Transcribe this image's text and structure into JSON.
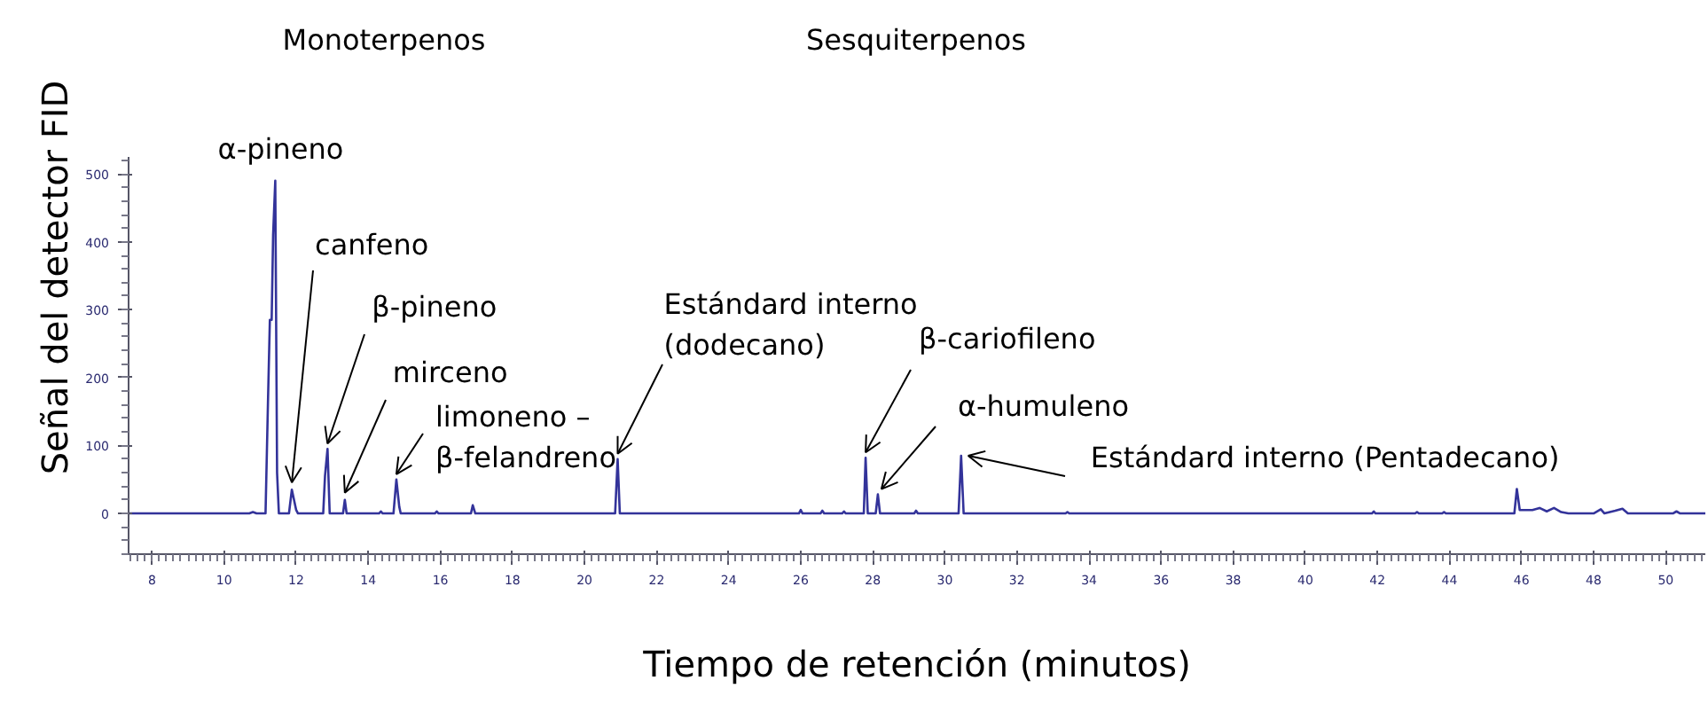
{
  "chart_data": {
    "type": "line",
    "xlabel": "Tiempo de retención (minutos)",
    "ylabel": "Señal del detector FID",
    "xlim": [
      7.35,
      51.1
    ],
    "ylim": [
      -60,
      525
    ],
    "xticks": [
      8,
      10,
      12,
      14,
      16,
      18,
      20,
      22,
      24,
      26,
      28,
      30,
      32,
      34,
      36,
      38,
      40,
      42,
      44,
      46,
      48,
      50
    ],
    "yticks": [
      0,
      100,
      200,
      300,
      400,
      500
    ],
    "grid": false,
    "marker": "none",
    "line_style": "solid",
    "series": [
      {
        "color": "#33339a",
        "x": [
          7.35,
          10.7,
          10.8,
          10.9,
          11.15,
          11.22,
          11.27,
          11.32,
          11.36,
          11.42,
          11.47,
          11.52,
          11.8,
          11.88,
          12.0,
          12.05,
          12.75,
          12.8,
          12.87,
          12.93,
          13.3,
          13.35,
          13.4,
          14.3,
          14.35,
          14.4,
          14.7,
          14.78,
          14.86,
          14.9,
          15.85,
          15.9,
          15.95,
          16.85,
          16.9,
          16.97,
          20.85,
          20.92,
          20.98,
          25.95,
          26.0,
          26.05,
          26.55,
          26.6,
          26.65,
          27.15,
          27.2,
          27.25,
          27.75,
          27.8,
          27.86,
          28.08,
          28.14,
          28.2,
          29.15,
          29.2,
          29.25,
          30.38,
          30.45,
          30.52,
          33.35,
          33.4,
          33.45,
          41.85,
          41.9,
          41.95,
          43.05,
          43.1,
          43.15,
          43.8,
          43.85,
          43.9,
          45.8,
          45.87,
          45.95,
          46.3,
          46.5,
          46.7,
          46.9,
          47.1,
          47.3,
          48.0,
          48.2,
          48.3,
          48.6,
          48.8,
          48.95,
          50.2,
          50.3,
          50.4,
          51.1
        ],
        "values": [
          0,
          0,
          2,
          0,
          0,
          170,
          285,
          285,
          410,
          490,
          60,
          0,
          0,
          35,
          5,
          0,
          0,
          55,
          95,
          0,
          0,
          20,
          0,
          0,
          3,
          0,
          0,
          50,
          10,
          0,
          0,
          3,
          0,
          0,
          12,
          0,
          0,
          80,
          0,
          0,
          5,
          0,
          0,
          4,
          0,
          0,
          3,
          0,
          0,
          82,
          0,
          0,
          28,
          0,
          0,
          4,
          0,
          0,
          85,
          0,
          0,
          2,
          0,
          0,
          3,
          0,
          0,
          2,
          0,
          0,
          2,
          0,
          0,
          36,
          5,
          5,
          8,
          3,
          8,
          2,
          0,
          0,
          6,
          0,
          4,
          7,
          0,
          0,
          3,
          0,
          0
        ]
      }
    ],
    "annotations": [
      "Monoterpenos",
      "Sesquiterpenos",
      {
        "text": "α-pineno",
        "x": 11.42,
        "y": 490
      },
      {
        "text": "canfeno",
        "x": 11.88,
        "y": 35
      },
      {
        "text": "β-pineno",
        "x": 12.87,
        "y": 95
      },
      {
        "text": "mirceno",
        "x": 13.35,
        "y": 20
      },
      {
        "text": "limoneno –\nβ-felandreno",
        "x": 14.78,
        "y": 50
      },
      {
        "text": "Estándard interno\n(dodecano)",
        "x": 20.92,
        "y": 80
      },
      {
        "text": "β-cariofileno",
        "x": 27.8,
        "y": 82
      },
      {
        "text": "α-humuleno",
        "x": 28.14,
        "y": 28
      },
      {
        "text": "Estándard interno (Pentadecano)",
        "x": 30.45,
        "y": 85
      }
    ]
  }
}
